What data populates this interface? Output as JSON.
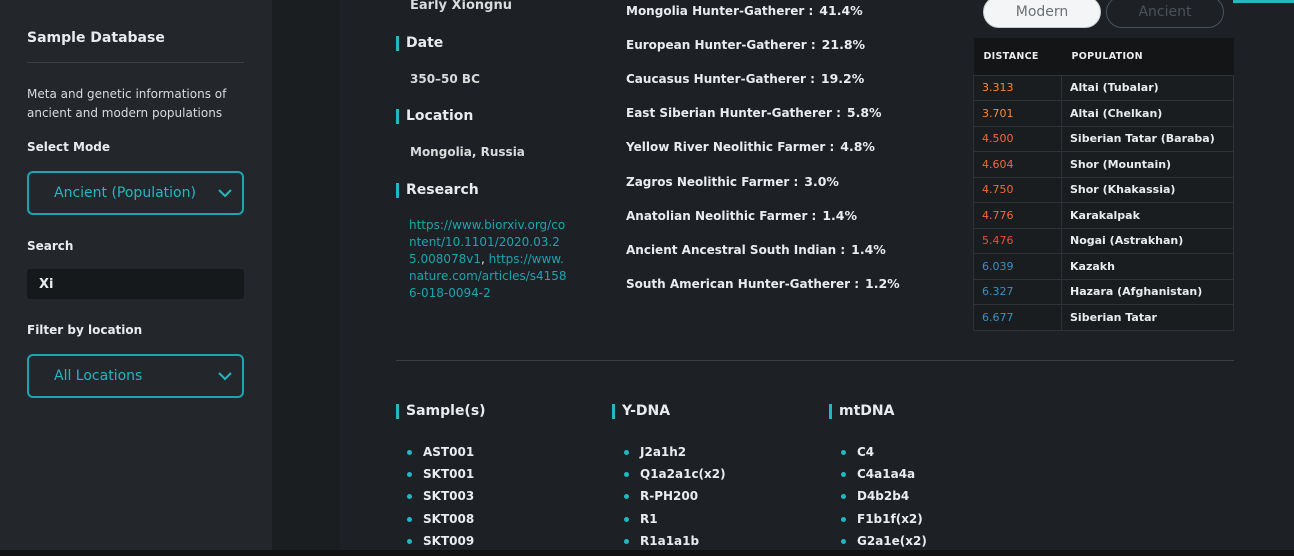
{
  "sidebar": {
    "title": "Sample Database",
    "description": "Meta and genetic informations of ancient and modern populations",
    "mode_label": "Select Mode",
    "mode_value": "Ancient (Population)",
    "search_label": "Search",
    "search_value": "Xi",
    "location_label": "Filter by location",
    "location_value": "All Locations"
  },
  "sample": {
    "culture": "Early Xiongnu",
    "date_heading": "Date",
    "date": "350–50 BC",
    "location_heading": "Location",
    "location": "Mongolia, Russia",
    "research_heading": "Research",
    "link1": "https://www.biorxiv.org/content/10.1101/2020.03.25.008078v1",
    "comma": ",",
    "link2": "https://www.nature.com/articles/s41586-018-0094-2"
  },
  "ancestry": [
    {
      "name": "Mongolia Hunter-Gatherer :",
      "pct": "41.4%"
    },
    {
      "name": "European Hunter-Gatherer :",
      "pct": "21.8%"
    },
    {
      "name": "Caucasus Hunter-Gatherer :",
      "pct": "19.2%"
    },
    {
      "name": "East Siberian Hunter-Gatherer :",
      "pct": "5.8%"
    },
    {
      "name": "Yellow River Neolithic Farmer :",
      "pct": "4.8%"
    },
    {
      "name": "Zagros Neolithic Farmer :",
      "pct": "3.0%"
    },
    {
      "name": "Anatolian Neolithic Farmer :",
      "pct": "1.4%"
    },
    {
      "name": "Ancient Ancestral South Indian :",
      "pct": "1.4%"
    },
    {
      "name": "South American Hunter-Gatherer :",
      "pct": "1.2%"
    }
  ],
  "toggle": {
    "modern": "Modern",
    "ancient": "Ancient"
  },
  "table": {
    "headers": [
      "DISTANCE",
      "POPULATION"
    ],
    "rows": [
      {
        "distance": "3.313",
        "population": "Altai (Tubalar)",
        "color": "#f08a3c"
      },
      {
        "distance": "3.701",
        "population": "Altai (Chelkan)",
        "color": "#f08a3c"
      },
      {
        "distance": "4.500",
        "population": "Siberian Tatar (Baraba)",
        "color": "#f06a3a"
      },
      {
        "distance": "4.604",
        "population": "Shor (Mountain)",
        "color": "#f06a3a"
      },
      {
        "distance": "4.750",
        "population": "Shor (Khakassia)",
        "color": "#f06a3a"
      },
      {
        "distance": "4.776",
        "population": "Karakalpak",
        "color": "#f06a3a"
      },
      {
        "distance": "5.476",
        "population": "Nogai (Astrakhan)",
        "color": "#ef4b3e"
      },
      {
        "distance": "6.039",
        "population": "Kazakh",
        "color": "#3a8fc4"
      },
      {
        "distance": "6.327",
        "population": "Hazara (Afghanistan)",
        "color": "#3a8fc4"
      },
      {
        "distance": "6.677",
        "population": "Siberian Tatar",
        "color": "#3a8fc4"
      }
    ]
  },
  "samples_heading": "Sample(s)",
  "samples": [
    "AST001",
    "SKT001",
    "SKT003",
    "SKT008",
    "SKT009"
  ],
  "ydna_heading": "Y-DNA",
  "ydna": [
    "J2a1h2",
    "Q1a2a1c(x2)",
    "R-PH200",
    "R1",
    "R1a1a1b"
  ],
  "mtdna_heading": "mtDNA",
  "mtdna": [
    "C4",
    "C4a1a4a",
    "D4b2b4",
    "F1b1f(x2)",
    "G2a1e(x2)"
  ],
  "colors": {
    "accent": "#22b7c2",
    "sidebar_bg": "#23272b",
    "main_bg": "#1d2024"
  }
}
